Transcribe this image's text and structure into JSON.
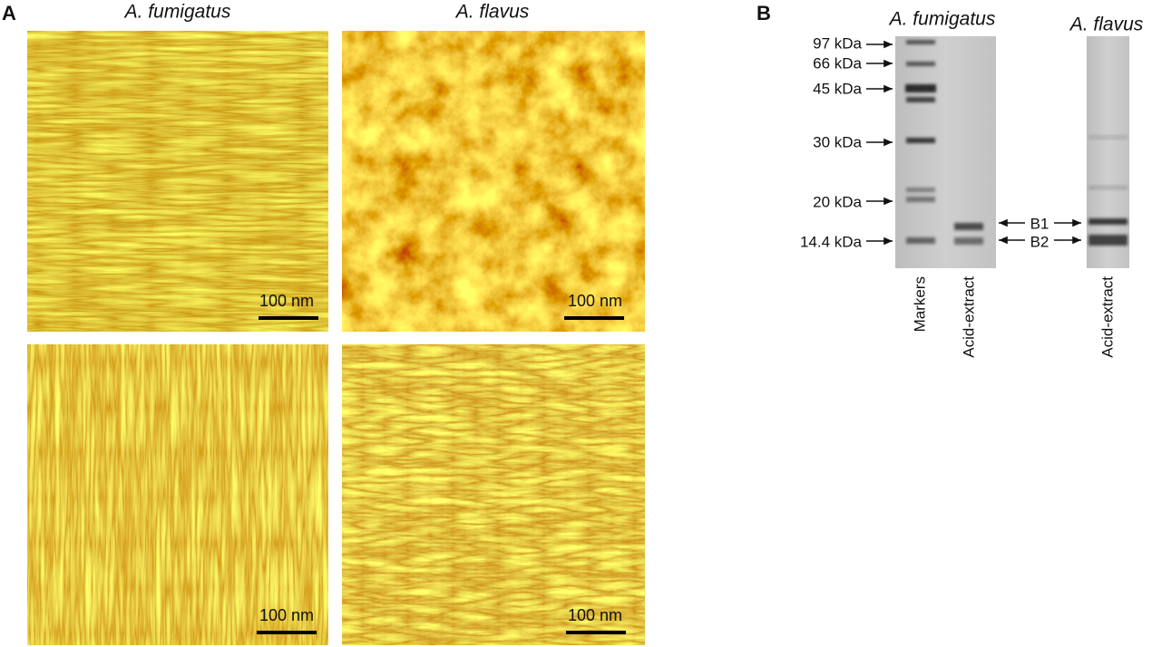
{
  "panel_a": {
    "label": "A",
    "columns": [
      "A. fumigatus",
      "A. flavus"
    ],
    "scale_bars": [
      "100 nm",
      "100 nm",
      "100 nm",
      "100 nm"
    ]
  },
  "panel_b": {
    "label": "B",
    "gels": [
      {
        "title": "A. fumigatus"
      },
      {
        "title": "A. flavus"
      }
    ],
    "markers": [
      "97 kDa",
      "66 kDa",
      "45 kDa",
      "30 kDa",
      "20 kDa",
      "14.4 kDa"
    ],
    "bands": [
      "B1",
      "B2"
    ],
    "lanes": [
      "Markers",
      "Acid-extract",
      "Acid-extract"
    ]
  }
}
